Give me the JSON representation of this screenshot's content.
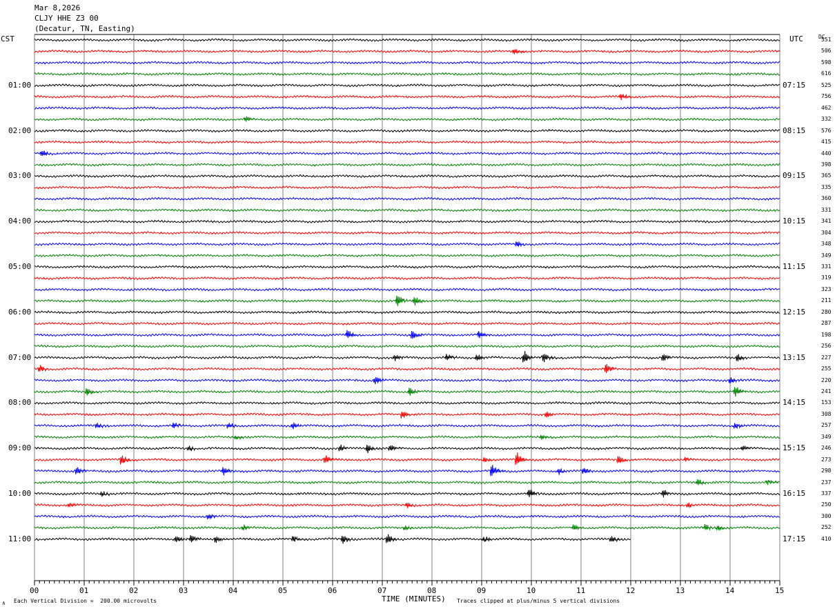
{
  "header": {
    "date": "Mar 8,2026",
    "station": "CLJY HHE Z3 00",
    "location": "(Decatur, TN, Easting)"
  },
  "left_zone": "CST",
  "right_zone": "UTC",
  "dc_label": "DC",
  "footer": {
    "division_note": "Each Vertical Division =  200.00 microvolts",
    "xaxis_title": "TIME (MINUTES)",
    "clip_note": "Traces clipped at plus/minus 5 vertical divisions",
    "corner_mark": "∧"
  },
  "colors": {
    "cycle": [
      "#000000",
      "#ff0000",
      "#0000ff",
      "#008000"
    ],
    "grid": "#808080"
  },
  "chart_data": {
    "type": "line",
    "title": "CLJY HHE Z3 00",
    "xlabel": "TIME (MINUTES)",
    "xlim": [
      0,
      15
    ],
    "x_ticks": [
      "00",
      "01",
      "02",
      "03",
      "04",
      "05",
      "06",
      "07",
      "08",
      "09",
      "10",
      "11",
      "12",
      "13",
      "14",
      "15"
    ],
    "left_hour_labels": [
      "01:00",
      "02:00",
      "03:00",
      "04:00",
      "05:00",
      "06:00",
      "07:00",
      "08:00",
      "09:00",
      "10:00",
      "11:00"
    ],
    "right_hour_labels": [
      "07:15",
      "08:15",
      "09:15",
      "10:15",
      "11:15",
      "12:15",
      "13:15",
      "14:15",
      "15:15",
      "16:15",
      "17:15"
    ],
    "dc_offsets": [
      "551",
      "506",
      "598",
      "616",
      "525",
      "756",
      "462",
      "332",
      "576",
      "415",
      "440",
      "398",
      "365",
      "335",
      "360",
      "331",
      "341",
      "304",
      "348",
      "349",
      "331",
      "319",
      "323",
      "211",
      "280",
      "287",
      "198",
      "256",
      "227",
      "255",
      "220",
      "241",
      "153",
      "308",
      "257",
      "349",
      "246",
      "273",
      "298",
      "237",
      "337",
      "250",
      "300",
      "252",
      "410"
    ],
    "trace_count": 45,
    "last_trace_end_minute": 12,
    "events": [
      {
        "trace": 1,
        "minute": 9.65,
        "amp": 6
      },
      {
        "trace": 5,
        "minute": 11.8,
        "amp": 5
      },
      {
        "trace": 7,
        "minute": 4.25,
        "amp": 5
      },
      {
        "trace": 10,
        "minute": 0.15,
        "amp": 5
      },
      {
        "trace": 18,
        "minute": 9.7,
        "amp": 5
      },
      {
        "trace": 23,
        "minute": 7.3,
        "amp": 10
      },
      {
        "trace": 23,
        "minute": 7.65,
        "amp": 7
      },
      {
        "trace": 26,
        "minute": 6.3,
        "amp": 7
      },
      {
        "trace": 26,
        "minute": 7.6,
        "amp": 7
      },
      {
        "trace": 26,
        "minute": 8.95,
        "amp": 6
      },
      {
        "trace": 28,
        "minute": 7.25,
        "amp": 5
      },
      {
        "trace": 28,
        "minute": 8.3,
        "amp": 5
      },
      {
        "trace": 28,
        "minute": 8.9,
        "amp": 6
      },
      {
        "trace": 28,
        "minute": 9.85,
        "amp": 10
      },
      {
        "trace": 28,
        "minute": 10.25,
        "amp": 8
      },
      {
        "trace": 28,
        "minute": 12.65,
        "amp": 6
      },
      {
        "trace": 28,
        "minute": 14.15,
        "amp": 6
      },
      {
        "trace": 29,
        "minute": 0.1,
        "amp": 6
      },
      {
        "trace": 29,
        "minute": 11.5,
        "amp": 8
      },
      {
        "trace": 30,
        "minute": 6.85,
        "amp": 7
      },
      {
        "trace": 30,
        "minute": 14.0,
        "amp": 5
      },
      {
        "trace": 31,
        "minute": 1.05,
        "amp": 6
      },
      {
        "trace": 31,
        "minute": 7.55,
        "amp": 7
      },
      {
        "trace": 31,
        "minute": 14.1,
        "amp": 8
      },
      {
        "trace": 33,
        "minute": 7.4,
        "amp": 7
      },
      {
        "trace": 33,
        "minute": 10.3,
        "amp": 5
      },
      {
        "trace": 34,
        "minute": 1.25,
        "amp": 4
      },
      {
        "trace": 34,
        "minute": 2.8,
        "amp": 5
      },
      {
        "trace": 34,
        "minute": 3.9,
        "amp": 5
      },
      {
        "trace": 34,
        "minute": 5.2,
        "amp": 5
      },
      {
        "trace": 34,
        "minute": 14.1,
        "amp": 5
      },
      {
        "trace": 35,
        "minute": 4.05,
        "amp": 4
      },
      {
        "trace": 35,
        "minute": 10.2,
        "amp": 4
      },
      {
        "trace": 36,
        "minute": 3.1,
        "amp": 4
      },
      {
        "trace": 36,
        "minute": 6.15,
        "amp": 5
      },
      {
        "trace": 36,
        "minute": 6.7,
        "amp": 7
      },
      {
        "trace": 36,
        "minute": 7.15,
        "amp": 5
      },
      {
        "trace": 36,
        "minute": 14.25,
        "amp": 4
      },
      {
        "trace": 37,
        "minute": 1.75,
        "amp": 8
      },
      {
        "trace": 37,
        "minute": 5.85,
        "amp": 7
      },
      {
        "trace": 37,
        "minute": 9.05,
        "amp": 4
      },
      {
        "trace": 37,
        "minute": 9.7,
        "amp": 11
      },
      {
        "trace": 37,
        "minute": 11.75,
        "amp": 7
      },
      {
        "trace": 37,
        "minute": 13.1,
        "amp": 4
      },
      {
        "trace": 38,
        "minute": 0.85,
        "amp": 6
      },
      {
        "trace": 38,
        "minute": 3.8,
        "amp": 7
      },
      {
        "trace": 38,
        "minute": 9.2,
        "amp": 10
      },
      {
        "trace": 38,
        "minute": 10.55,
        "amp": 5
      },
      {
        "trace": 38,
        "minute": 11.05,
        "amp": 5
      },
      {
        "trace": 39,
        "minute": 13.35,
        "amp": 5
      },
      {
        "trace": 39,
        "minute": 14.75,
        "amp": 4
      },
      {
        "trace": 40,
        "minute": 1.35,
        "amp": 4
      },
      {
        "trace": 40,
        "minute": 9.95,
        "amp": 7
      },
      {
        "trace": 40,
        "minute": 12.65,
        "amp": 6
      },
      {
        "trace": 41,
        "minute": 0.7,
        "amp": 4
      },
      {
        "trace": 41,
        "minute": 7.5,
        "amp": 4
      },
      {
        "trace": 41,
        "minute": 13.15,
        "amp": 4
      },
      {
        "trace": 42,
        "minute": 3.5,
        "amp": 5
      },
      {
        "trace": 43,
        "minute": 4.2,
        "amp": 5
      },
      {
        "trace": 43,
        "minute": 7.45,
        "amp": 4
      },
      {
        "trace": 43,
        "minute": 10.85,
        "amp": 5
      },
      {
        "trace": 43,
        "minute": 13.5,
        "amp": 5
      },
      {
        "trace": 43,
        "minute": 13.75,
        "amp": 5
      },
      {
        "trace": 44,
        "minute": 2.85,
        "amp": 5
      },
      {
        "trace": 44,
        "minute": 3.15,
        "amp": 6
      },
      {
        "trace": 44,
        "minute": 3.65,
        "amp": 5
      },
      {
        "trace": 44,
        "minute": 5.2,
        "amp": 5
      },
      {
        "trace": 44,
        "minute": 6.2,
        "amp": 8
      },
      {
        "trace": 44,
        "minute": 7.1,
        "amp": 7
      },
      {
        "trace": 44,
        "minute": 9.05,
        "amp": 4
      },
      {
        "trace": 44,
        "minute": 11.6,
        "amp": 5
      }
    ]
  }
}
